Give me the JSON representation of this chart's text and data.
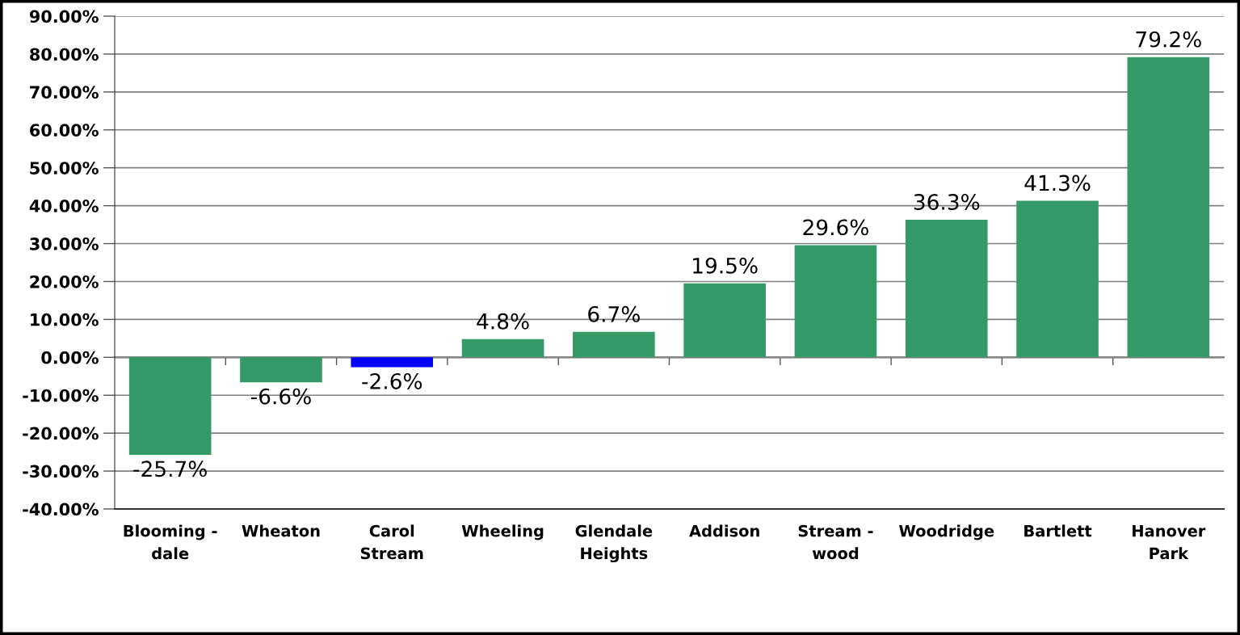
{
  "chart_data": {
    "type": "bar",
    "categories": [
      "Blooming -\ndale",
      "Wheaton",
      "Carol\nStream",
      "Wheeling",
      "Glendale\nHeights",
      "Addison",
      "Stream -\nwood",
      "Woodridge",
      "Bartlett",
      "Hanover\nPark"
    ],
    "values": [
      -25.7,
      -6.6,
      -2.6,
      4.8,
      6.7,
      19.5,
      29.6,
      36.3,
      41.3,
      79.2
    ],
    "colors": [
      "#339966",
      "#339966",
      "#0000ff",
      "#339966",
      "#339966",
      "#339966",
      "#339966",
      "#339966",
      "#339966",
      "#339966"
    ],
    "value_labels": [
      "-25.7%",
      "-6.6%",
      "-2.6%",
      "4.8%",
      "6.7%",
      "19.5%",
      "29.6%",
      "36.3%",
      "41.3%",
      "79.2%"
    ],
    "ylim": [
      -40,
      90
    ],
    "yticks": [
      {
        "value": -40,
        "label": "-40.00%"
      },
      {
        "value": -30,
        "label": "-30.00%"
      },
      {
        "value": -20,
        "label": "-20.00%"
      },
      {
        "value": -10,
        "label": "-10.00%"
      },
      {
        "value": 0,
        "label": "0.00%"
      },
      {
        "value": 10,
        "label": "10.00%"
      },
      {
        "value": 20,
        "label": "20.00%"
      },
      {
        "value": 30,
        "label": "30.00%"
      },
      {
        "value": 40,
        "label": "40.00%"
      },
      {
        "value": 50,
        "label": "50.00%"
      },
      {
        "value": 60,
        "label": "60.00%"
      },
      {
        "value": 70,
        "label": "70.00%"
      },
      {
        "value": 80,
        "label": "80.00%"
      },
      {
        "value": 90,
        "label": "90.00%"
      }
    ],
    "grid": "y"
  }
}
